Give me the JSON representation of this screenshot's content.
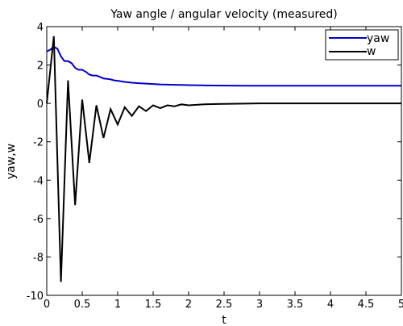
{
  "chart_data": {
    "type": "line",
    "title": "Yaw angle / angular velocity (measured)",
    "xlabel": "t",
    "ylabel": "yaw,w",
    "xlim": [
      0,
      5
    ],
    "ylim": [
      -10,
      4
    ],
    "xticks": [
      0,
      0.5,
      1,
      1.5,
      2,
      2.5,
      3,
      3.5,
      4,
      4.5,
      5
    ],
    "xtick_labels": [
      "0",
      "0.5",
      "1",
      "1.5",
      "2",
      "2.5",
      "3",
      "3.5",
      "4",
      "4.5",
      "5"
    ],
    "yticks": [
      4,
      2,
      0,
      -2,
      -4,
      -6,
      -8,
      -10
    ],
    "ytick_labels": [
      "4",
      "2",
      "0",
      "-2",
      "-4",
      "-6",
      "-8",
      "-10"
    ],
    "grid": false,
    "legend_position": "top-right",
    "series": [
      {
        "name": "yaw",
        "color": "#0000cc",
        "x": [
          0,
          0.05,
          0.1,
          0.15,
          0.2,
          0.25,
          0.3,
          0.35,
          0.4,
          0.45,
          0.5,
          0.55,
          0.6,
          0.65,
          0.7,
          0.75,
          0.8,
          0.85,
          0.9,
          0.95,
          1.0,
          1.1,
          1.2,
          1.3,
          1.4,
          1.5,
          1.6,
          1.7,
          1.8,
          1.9,
          2.0,
          2.2,
          2.4,
          2.6,
          2.8,
          3.0,
          3.5,
          4.0,
          4.5,
          5.0
        ],
        "y": [
          2.7,
          2.8,
          2.95,
          2.85,
          2.45,
          2.2,
          2.2,
          2.1,
          1.85,
          1.75,
          1.75,
          1.65,
          1.5,
          1.45,
          1.45,
          1.38,
          1.3,
          1.28,
          1.25,
          1.2,
          1.18,
          1.12,
          1.08,
          1.05,
          1.03,
          1.01,
          0.99,
          0.98,
          0.97,
          0.96,
          0.95,
          0.94,
          0.93,
          0.925,
          0.92,
          0.92,
          0.92,
          0.92,
          0.92,
          0.92
        ]
      },
      {
        "name": "w",
        "color": "#000000",
        "x": [
          0,
          0.1,
          0.2,
          0.3,
          0.4,
          0.5,
          0.6,
          0.7,
          0.8,
          0.9,
          1.0,
          1.1,
          1.2,
          1.3,
          1.4,
          1.5,
          1.6,
          1.7,
          1.8,
          1.9,
          2.0,
          2.2,
          2.4,
          2.6,
          2.8,
          3.0,
          3.5,
          4.0,
          4.5,
          5.0
        ],
        "y": [
          0,
          3.5,
          -9.3,
          1.2,
          -5.3,
          0.2,
          -3.1,
          -0.1,
          -1.8,
          -0.3,
          -1.1,
          -0.2,
          -0.65,
          -0.15,
          -0.4,
          -0.1,
          -0.25,
          -0.1,
          -0.15,
          -0.05,
          -0.1,
          -0.05,
          -0.03,
          -0.02,
          -0.01,
          0.0,
          0.0,
          0.0,
          0.0,
          0.0
        ]
      }
    ]
  }
}
